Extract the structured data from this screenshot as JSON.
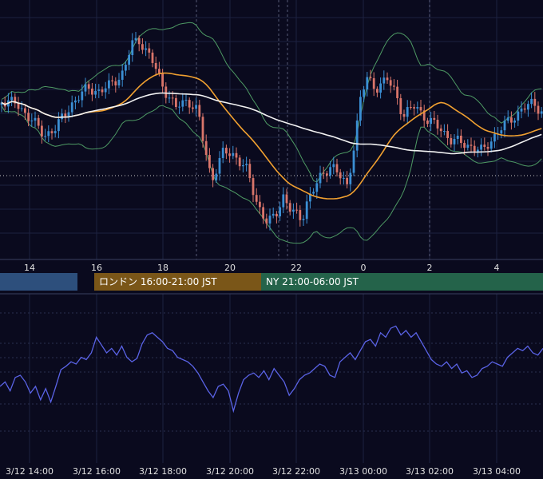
{
  "colors": {
    "background": "#0a0a1e",
    "grid": "#1c2140",
    "up_candle": "#3b8fd4",
    "down_candle": "#d9756a",
    "ma_fast": "#f0a030",
    "ma_slow": "#f2f2f2",
    "bollinger": "#4e9a64",
    "oscillator": "#5a63e6",
    "axis_text": "#e0e0e0"
  },
  "sessions": {
    "tokyo": "",
    "london": "ロンドン 16:00-21:00 JST",
    "ny": "NY 21:00-06:00 JST"
  },
  "chart_data": [
    {
      "type": "candlestick",
      "x_tick_labels": [
        "14",
        "16",
        "18",
        "20",
        "22",
        "0",
        "2",
        "4"
      ],
      "grid": true,
      "overlays": [
        "moving average (orange)",
        "moving average (white)",
        "bollinger bands (green)"
      ]
    },
    {
      "type": "line",
      "x_tick_labels": [
        "3/12 14:00",
        "3/12 16:00",
        "3/12 18:00",
        "3/12 20:00",
        "3/12 22:00",
        "3/13 00:00",
        "3/13 02:00",
        "3/13 04:00"
      ],
      "grid": true,
      "values": [
        40,
        44,
        36,
        48,
        50,
        44,
        34,
        40,
        28,
        38,
        26,
        40,
        55,
        58,
        62,
        60,
        66,
        64,
        70,
        84,
        77,
        70,
        74,
        68,
        76,
        66,
        62,
        65,
        78,
        86,
        88,
        84,
        80,
        74,
        72,
        66,
        64,
        62,
        58,
        52,
        44,
        36,
        30,
        40,
        42,
        36,
        18,
        34,
        46,
        50,
        52,
        48,
        54,
        46,
        56,
        50,
        44,
        32,
        38,
        46,
        50,
        52,
        56,
        60,
        58,
        50,
        48,
        62,
        66,
        70,
        64,
        72,
        80,
        82,
        76,
        88,
        84,
        92,
        94,
        86,
        90,
        84,
        88,
        80,
        72,
        64,
        60,
        58,
        62,
        56,
        60,
        52,
        54,
        48,
        50,
        56,
        58,
        62,
        60,
        58,
        66,
        70,
        74,
        72,
        76,
        70,
        68,
        74
      ]
    }
  ]
}
